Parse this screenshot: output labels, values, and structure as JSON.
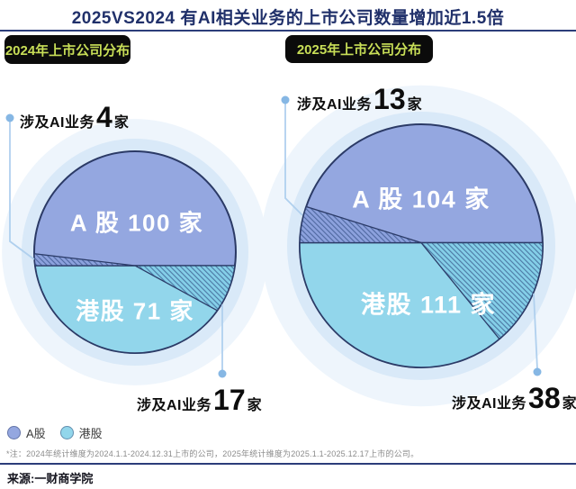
{
  "title": "2025VS2024 有AI相关业务的上市公司数量增加近1.5倍",
  "pies": [
    {
      "badge": "2024年上市公司分布",
      "slice_a_label": "A 股 100 家",
      "slice_hk_label": "港股 71 家",
      "callout_a": {
        "prefix": "涉及AI业务",
        "value": "4",
        "suffix": "家"
      },
      "callout_hk": {
        "prefix": "涉及AI业务",
        "value": "17",
        "suffix": "家"
      }
    },
    {
      "badge": "2025年上市公司分布",
      "slice_a_label": "A 股 104 家",
      "slice_hk_label": "港股 111 家",
      "callout_a": {
        "prefix": "涉及AI业务",
        "value": "13",
        "suffix": "家"
      },
      "callout_hk": {
        "prefix": "涉及AI业务",
        "value": "38",
        "suffix": "家"
      }
    }
  ],
  "legend": {
    "a": "A股",
    "hk": "港股"
  },
  "footnote": "*注：2024年统计维度为2024.1.1-2024.12.31上市的公司，2025年统计维度为2025.1.1-2025.12.17上市的公司。",
  "source": "来源:一财商学院",
  "colors": {
    "a_share": "#94a7e0",
    "hk_share": "#92d6eb",
    "a_share_ai": "#8ca1dd",
    "hk_share_ai": "#84cfe8",
    "outline": "#2b3a66",
    "halo": "#d9e9f8",
    "halo_outer": "#eef5fc",
    "hatch_line": "#2e4a80",
    "connector": "#b0d0ee",
    "dot": "#86b7e4",
    "navy_accent": "#20306a",
    "badge_bg": "#0b0b0b",
    "badge_text": "#c8de57"
  },
  "chart_data": [
    {
      "type": "pie",
      "title": "2024年上市公司分布",
      "categories": [
        "A股",
        "港股"
      ],
      "values": [
        100,
        71
      ],
      "ai_related": [
        4,
        17
      ],
      "unit": "家",
      "annotations": [
        "A股涉及AI业务4家",
        "港股涉及AI业务17家"
      ],
      "legend_position": "bottom-left"
    },
    {
      "type": "pie",
      "title": "2025年上市公司分布",
      "categories": [
        "A股",
        "港股"
      ],
      "values": [
        104,
        111
      ],
      "ai_related": [
        13,
        38
      ],
      "unit": "家",
      "annotations": [
        "A股涉及AI业务13家",
        "港股涉及AI业务38家"
      ],
      "legend_position": "bottom-left"
    }
  ]
}
